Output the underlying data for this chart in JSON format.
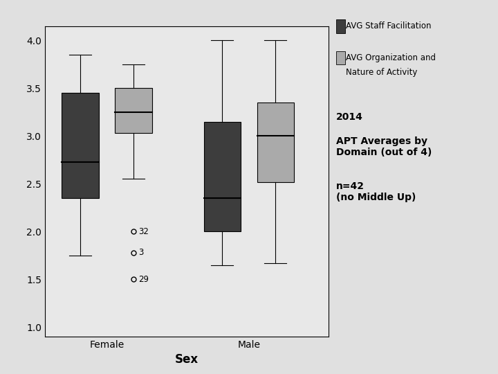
{
  "background_color": "#e0e0e0",
  "plot_bg_color": "#e8e8e8",
  "right_panel_color": "#f0f0f0",
  "ylim": [
    0.9,
    4.15
  ],
  "yticks": [
    1.0,
    1.5,
    2.0,
    2.5,
    3.0,
    3.5,
    4.0
  ],
  "xlabel": "Sex",
  "categories": [
    "Female",
    "Male"
  ],
  "series": [
    {
      "label": "AVG Staff Facilitation",
      "color": "#3d3d3d",
      "positions": [
        1.0,
        3.0
      ],
      "boxes": [
        {
          "q1": 2.35,
          "median": 2.73,
          "q3": 3.45,
          "whisker_low": 1.75,
          "whisker_high": 3.85,
          "outliers": []
        },
        {
          "q1": 2.0,
          "median": 2.35,
          "q3": 3.15,
          "whisker_low": 1.65,
          "whisker_high": 4.0,
          "outliers": []
        }
      ]
    },
    {
      "label": "AVG Organization and\nNature of Activity",
      "color": "#aaaaaa",
      "positions": [
        1.75,
        3.75
      ],
      "boxes": [
        {
          "q1": 3.03,
          "median": 3.25,
          "q3": 3.5,
          "whisker_low": 2.55,
          "whisker_high": 3.75,
          "outliers": [
            {
              "y": 2.0,
              "label": "32"
            },
            {
              "y": 1.78,
              "label": "3"
            },
            {
              "y": 1.5,
              "label": "29"
            }
          ]
        },
        {
          "q1": 2.52,
          "median": 3.0,
          "q3": 3.35,
          "whisker_low": 1.67,
          "whisker_high": 4.0,
          "outliers": []
        }
      ]
    }
  ],
  "box_width": 0.52,
  "legend_labels": [
    "AVG Staff Facilitation",
    "AVG Organization and\nNature of Activity"
  ],
  "legend_colors": [
    "#3d3d3d",
    "#aaaaaa"
  ],
  "title_text_line1": "2014",
  "title_text_line2": "APT Averages by\nDomain (out of 4)",
  "title_text_line3": "n=42\n(no Middle Up)",
  "title_fontsize": 10,
  "axis_label_fontsize": 12,
  "tick_fontsize": 10,
  "outlier_fontsize": 8.5,
  "cap_ratio": 0.3
}
